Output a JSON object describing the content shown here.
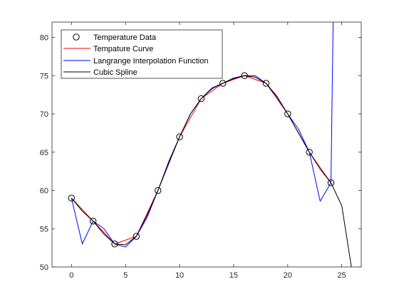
{
  "chart_data": {
    "type": "line",
    "title": "",
    "xlabel": "",
    "ylabel": "",
    "xlim": [
      -1.8,
      26.8
    ],
    "ylim": [
      50,
      82
    ],
    "x_ticks": [
      0,
      5,
      10,
      15,
      20,
      25
    ],
    "y_ticks": [
      50,
      55,
      60,
      65,
      70,
      75,
      80
    ],
    "grid": false,
    "legend_position": "top-left",
    "colors": {
      "temperature_data": "#000000",
      "temperature_curve": "#ff0000",
      "lagrange": "#0000ff",
      "spline": "#000000",
      "axes": "#262626"
    },
    "legend": [
      "Temperature Data",
      "Tempature Curve",
      "Langrange Interpolation Function",
      "Cubic Spline"
    ],
    "series": [
      {
        "name": "Temperature Data",
        "style": "markers",
        "x": [
          0,
          2,
          4,
          6,
          8,
          10,
          12,
          14,
          16,
          18,
          20,
          22,
          24
        ],
        "y": [
          59,
          56,
          53,
          54,
          60,
          67,
          72,
          74,
          75,
          74,
          70,
          65,
          61
        ]
      },
      {
        "name": "Tempature Curve",
        "style": "line",
        "x": [
          0,
          1,
          2,
          3,
          4,
          5,
          6,
          7,
          8,
          9,
          10,
          11,
          12,
          13,
          14,
          15,
          16,
          17,
          18,
          19,
          20,
          21,
          22,
          23,
          24
        ],
        "y": [
          59,
          57.5,
          56,
          54.5,
          53,
          53.5,
          54,
          57,
          60,
          63.5,
          67,
          69.5,
          72,
          73,
          74,
          74.5,
          75,
          74.5,
          74,
          72,
          70,
          67.5,
          65,
          63,
          61
        ]
      },
      {
        "name": "Langrange Interpolation Function",
        "style": "line",
        "x": [
          0,
          1,
          2,
          3,
          4,
          5,
          6,
          7,
          8,
          9,
          10,
          11,
          12,
          13,
          14,
          15,
          16,
          17,
          18,
          19,
          20,
          21,
          22,
          23,
          24,
          24.2
        ],
        "y": [
          59,
          53,
          56,
          55,
          53,
          52.6,
          54,
          56.5,
          60,
          63.8,
          67,
          70,
          72,
          73.4,
          74,
          74.7,
          75,
          75,
          74,
          72.2,
          70,
          68,
          65,
          58.6,
          61,
          82
        ]
      },
      {
        "name": "Cubic Spline",
        "style": "line",
        "x": [
          0,
          1,
          2,
          3,
          4,
          5,
          6,
          7,
          8,
          9,
          10,
          11,
          12,
          13,
          14,
          15,
          16,
          17,
          18,
          19,
          20,
          21,
          22,
          23,
          24,
          25,
          26
        ],
        "y": [
          59,
          57.3,
          56,
          54.3,
          53,
          52.9,
          54,
          56.8,
          60,
          63.6,
          67,
          70,
          72,
          73.3,
          74,
          74.6,
          75,
          74.8,
          74,
          72.3,
          70,
          67.5,
          65,
          62.8,
          61,
          58,
          49
        ]
      }
    ]
  }
}
